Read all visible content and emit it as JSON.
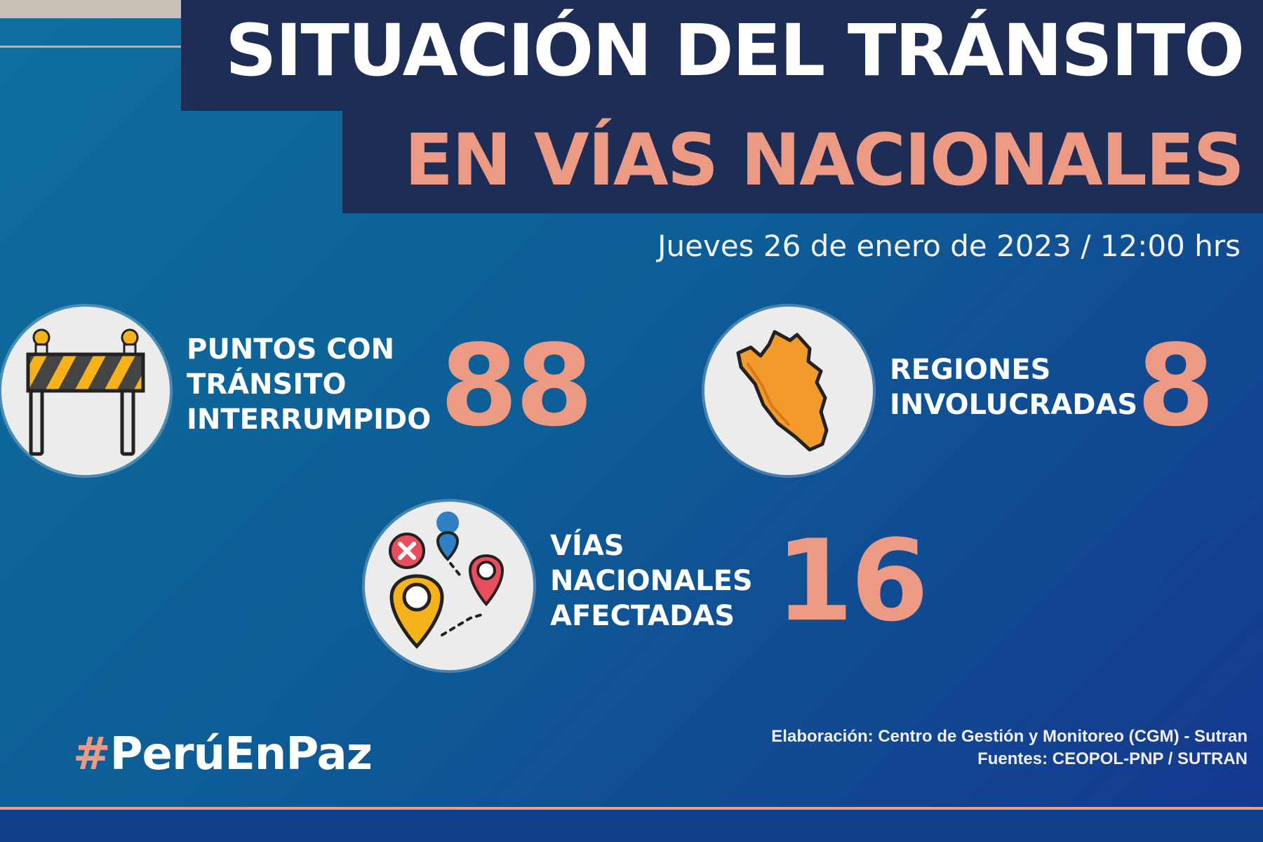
{
  "header": {
    "title_line1": "SITUACIÓN DEL TRÁNSITO",
    "title_line2": "EN VÍAS NACIONALES",
    "date": "Jueves 26 de enero de 2023 / 12:00 hrs"
  },
  "stats": [
    {
      "label": "PUNTOS CON\nTRÁNSITO\nINTERRUMPIDO",
      "value": "88",
      "icon": "road-barrier-icon"
    },
    {
      "label": "REGIONES\nINVOLUCRADAS",
      "value": "8",
      "icon": "peru-map-icon"
    },
    {
      "label": "VÍAS\nNACIONALES\nAFECTADAS",
      "value": "16",
      "icon": "location-pins-icon"
    }
  ],
  "footer": {
    "hashtag_symbol": "#",
    "hashtag_text": "PerúEnPaz",
    "credit_line1": "Elaboración: Centro de Gestión y Monitoreo (CGM) - Sutran",
    "credit_line2": "Fuentes:  CEOPOL-PNP / SUTRAN"
  },
  "colors": {
    "accent": "#ec9a83",
    "title_box": "#1e2d55",
    "background_start": "#0e6f9e",
    "background_end": "#15378f"
  }
}
